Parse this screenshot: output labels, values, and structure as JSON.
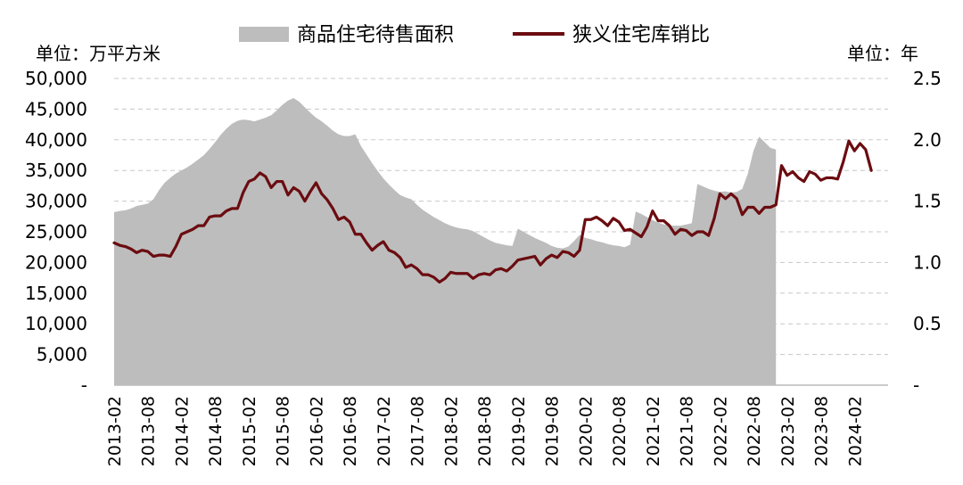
{
  "chart_data": {
    "type": "area+line",
    "title": "",
    "legend": {
      "placement": "top",
      "entries": [
        {
          "name": "商品住宅待售面积",
          "kind": "area",
          "color": "#bdbdbd"
        },
        {
          "name": "狭义住宅库销比",
          "kind": "line",
          "color": "#6b0c10"
        }
      ]
    },
    "y_left": {
      "unit_label": "单位：万平方米",
      "ylim": [
        0,
        50000
      ],
      "ticks": [
        0,
        5000,
        10000,
        15000,
        20000,
        25000,
        30000,
        35000,
        40000,
        45000,
        50000
      ],
      "tick_labels": [
        "-",
        "5,000",
        "10,000",
        "15,000",
        "20,000",
        "25,000",
        "30,000",
        "35,000",
        "40,000",
        "45,000",
        "50,000"
      ]
    },
    "y_right": {
      "unit_label": "单位：年",
      "ylim": [
        0,
        2.5
      ],
      "ticks": [
        0,
        0.5,
        1.0,
        1.5,
        2.0,
        2.5
      ],
      "tick_labels": [
        "-",
        "0.5",
        "1.0",
        "1.5",
        "2.0",
        "2.5"
      ]
    },
    "x_tick_labels": [
      "2013-02",
      "2013-08",
      "2014-02",
      "2014-08",
      "2015-02",
      "2015-08",
      "2016-02",
      "2016-08",
      "2017-02",
      "2017-08",
      "2018-02",
      "2018-08",
      "2019-02",
      "2019-08",
      "2020-02",
      "2020-08",
      "2021-02",
      "2021-08",
      "2022-02",
      "2022-08",
      "2023-02",
      "2023-08",
      "2024-02"
    ],
    "grid": "horizontal dashed",
    "series": [
      {
        "name": "商品住宅待售面积",
        "axis": "left",
        "start": "2013-02",
        "frequency": "monthly",
        "values": [
          28200,
          28400,
          28500,
          28800,
          29200,
          29400,
          29600,
          30300,
          31800,
          33000,
          33800,
          34500,
          35000,
          35500,
          36100,
          36800,
          37500,
          38500,
          39600,
          40800,
          41800,
          42600,
          43100,
          43300,
          43200,
          43000,
          43300,
          43600,
          44000,
          44800,
          45700,
          46400,
          46800,
          46200,
          45300,
          44400,
          43600,
          43000,
          42300,
          41500,
          40900,
          40600,
          40600,
          40900,
          39000,
          37600,
          36200,
          34900,
          33700,
          32700,
          31800,
          31000,
          30600,
          30300,
          29400,
          28600,
          28000,
          27400,
          26900,
          26400,
          26000,
          25700,
          25500,
          25400,
          25100,
          24600,
          24100,
          23600,
          23200,
          23000,
          22800,
          22700,
          25500,
          25000,
          24500,
          24000,
          23600,
          23200,
          22700,
          22400,
          22300,
          22600,
          23500,
          24500,
          24000,
          23800,
          23500,
          23300,
          23000,
          22800,
          22700,
          22500,
          22900,
          28300,
          27900,
          27400,
          26900,
          26500,
          26200,
          26000,
          26000,
          26000,
          26200,
          26400,
          32800,
          32400,
          32000,
          31700,
          31500,
          31600,
          31400,
          31500,
          32000,
          34500,
          38200,
          40500,
          39600,
          38700,
          38400
        ]
      },
      {
        "name": "狭义住宅库销比",
        "axis": "right",
        "start": "2013-02",
        "frequency": "monthly",
        "values": [
          1.16,
          1.14,
          1.13,
          1.11,
          1.08,
          1.1,
          1.09,
          1.05,
          1.06,
          1.06,
          1.05,
          1.13,
          1.23,
          1.25,
          1.27,
          1.3,
          1.3,
          1.37,
          1.38,
          1.38,
          1.42,
          1.44,
          1.44,
          1.57,
          1.66,
          1.68,
          1.73,
          1.7,
          1.61,
          1.66,
          1.66,
          1.55,
          1.61,
          1.58,
          1.5,
          1.58,
          1.65,
          1.56,
          1.51,
          1.44,
          1.35,
          1.37,
          1.33,
          1.23,
          1.23,
          1.16,
          1.1,
          1.14,
          1.17,
          1.1,
          1.08,
          1.04,
          0.96,
          0.98,
          0.95,
          0.9,
          0.9,
          0.88,
          0.84,
          0.87,
          0.92,
          0.91,
          0.91,
          0.91,
          0.87,
          0.9,
          0.91,
          0.9,
          0.94,
          0.95,
          0.93,
          0.97,
          1.02,
          1.03,
          1.04,
          1.05,
          0.98,
          1.03,
          1.06,
          1.04,
          1.09,
          1.08,
          1.05,
          1.1,
          1.35,
          1.35,
          1.37,
          1.34,
          1.3,
          1.36,
          1.33,
          1.26,
          1.27,
          1.24,
          1.21,
          1.29,
          1.42,
          1.34,
          1.34,
          1.3,
          1.23,
          1.27,
          1.26,
          1.22,
          1.25,
          1.25,
          1.22,
          1.36,
          1.56,
          1.52,
          1.56,
          1.52,
          1.39,
          1.45,
          1.45,
          1.4,
          1.45,
          1.45,
          1.47,
          1.79,
          1.71,
          1.74,
          1.69,
          1.66,
          1.74,
          1.72,
          1.67,
          1.69,
          1.69,
          1.68,
          1.82,
          1.99,
          1.91,
          1.97,
          1.92,
          1.75
        ]
      }
    ]
  }
}
